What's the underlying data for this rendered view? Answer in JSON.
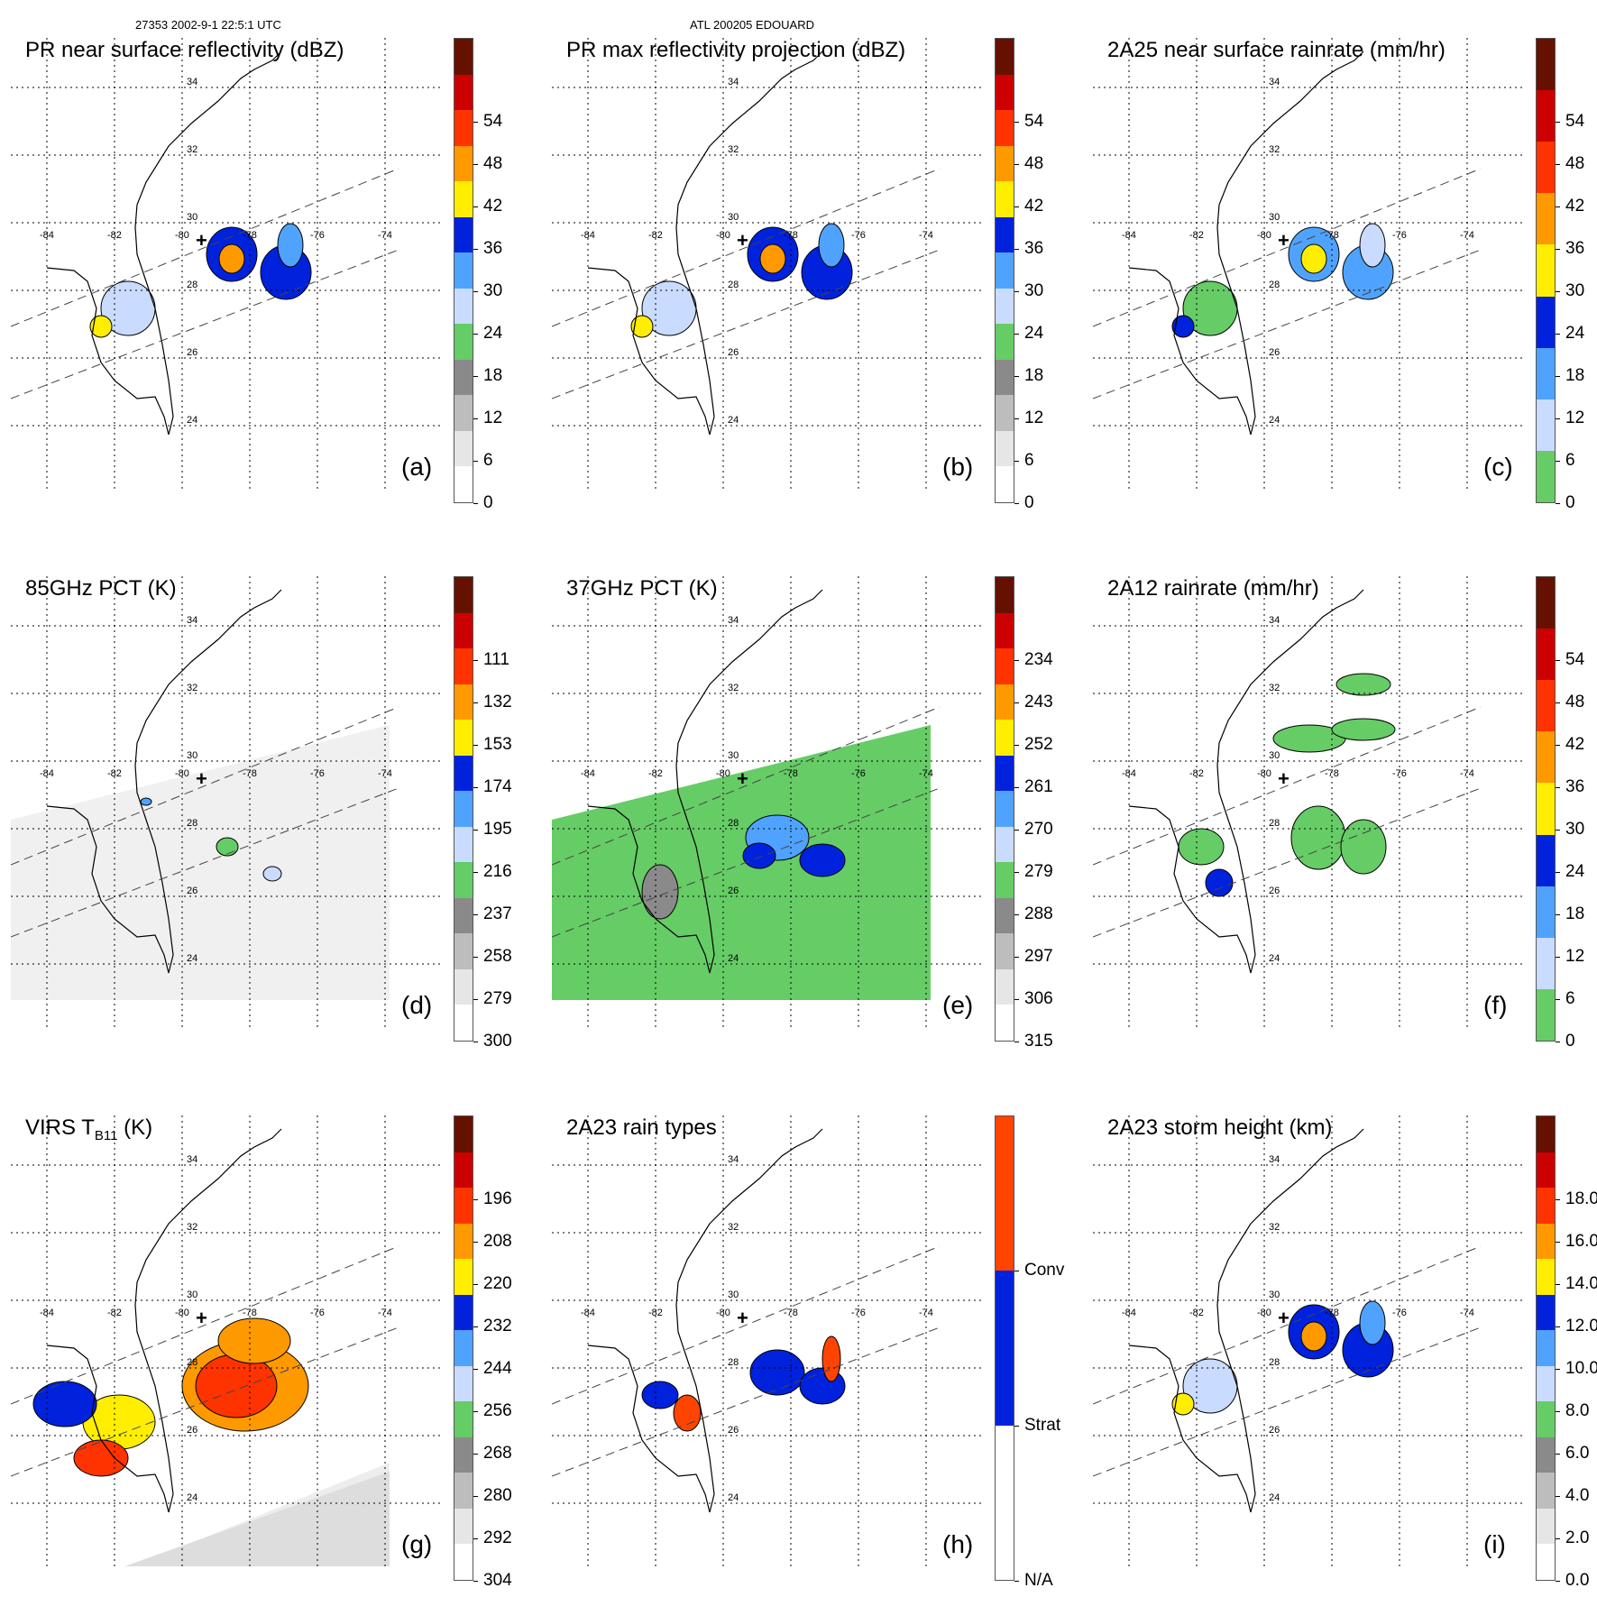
{
  "header": {
    "orbit_time": "27353 2002-9-1 22:5:1 UTC",
    "storm": "ATL 200205 EDOUARD"
  },
  "lon_labels": [
    "-84",
    "-82",
    "-80",
    "-78",
    "-76",
    "-74"
  ],
  "lat_labels": [
    "34",
    "32",
    "30",
    "28",
    "26",
    "24"
  ],
  "panels": [
    {
      "id": "a",
      "title": "PR near surface reflectivity (dBZ)",
      "letter": "(a)",
      "ticks": [
        "0",
        "6",
        "12",
        "18",
        "24",
        "30",
        "36",
        "42",
        "48",
        "54",
        ""
      ],
      "colors": [
        "#ffffff",
        "#e6e6e6",
        "#bdbdbd",
        "#8a8a8a",
        "#66cc66",
        "#c9dbff",
        "#4fa3ff",
        "#0022dd",
        "#ffee00",
        "#ff9900",
        "#ff3300",
        "#cc0000",
        "#661100"
      ]
    },
    {
      "id": "b",
      "title": "PR max reflectivity projection (dBZ)",
      "letter": "(b)",
      "ticks": [
        "0",
        "6",
        "12",
        "18",
        "24",
        "30",
        "36",
        "42",
        "48",
        "54",
        ""
      ],
      "colors": [
        "#ffffff",
        "#e6e6e6",
        "#bdbdbd",
        "#8a8a8a",
        "#66cc66",
        "#c9dbff",
        "#4fa3ff",
        "#0022dd",
        "#ffee00",
        "#ff9900",
        "#ff3300",
        "#cc0000",
        "#661100"
      ]
    },
    {
      "id": "c",
      "title": "2A25 near surface rainrate (mm/hr)",
      "letter": "(c)",
      "ticks": [
        "0",
        "6",
        "12",
        "18",
        "24",
        "30",
        "36",
        "42",
        "48",
        "54",
        ""
      ],
      "colors": [
        "#66cc66",
        "#c9dbff",
        "#4fa3ff",
        "#0022dd",
        "#ffee00",
        "#ff9900",
        "#ff3300",
        "#cc0000",
        "#661100"
      ]
    },
    {
      "id": "d",
      "title": "85GHz PCT (K)",
      "letter": "(d)",
      "ticks": [
        "300",
        "279",
        "258",
        "237",
        "216",
        "195",
        "174",
        "153",
        "132",
        "111",
        ""
      ],
      "colors": [
        "#ffffff",
        "#e6e6e6",
        "#bdbdbd",
        "#8a8a8a",
        "#66cc66",
        "#c9dbff",
        "#4fa3ff",
        "#0022dd",
        "#ffee00",
        "#ff9900",
        "#ff3300",
        "#cc0000",
        "#661100"
      ]
    },
    {
      "id": "e",
      "title": "37GHz PCT (K)",
      "letter": "(e)",
      "ticks": [
        "315",
        "306",
        "297",
        "288",
        "279",
        "270",
        "261",
        "252",
        "243",
        "234",
        ""
      ],
      "colors": [
        "#ffffff",
        "#e6e6e6",
        "#bdbdbd",
        "#8a8a8a",
        "#66cc66",
        "#c9dbff",
        "#4fa3ff",
        "#0022dd",
        "#ffee00",
        "#ff9900",
        "#ff3300",
        "#cc0000",
        "#661100"
      ]
    },
    {
      "id": "f",
      "title": "2A12 rainrate (mm/hr)",
      "letter": "(f)",
      "ticks": [
        "0",
        "6",
        "12",
        "18",
        "24",
        "30",
        "36",
        "42",
        "48",
        "54",
        ""
      ],
      "colors": [
        "#66cc66",
        "#c9dbff",
        "#4fa3ff",
        "#0022dd",
        "#ffee00",
        "#ff9900",
        "#ff3300",
        "#cc0000",
        "#661100"
      ]
    },
    {
      "id": "g",
      "title": "VIRS T",
      "title_sub": "B11",
      "title_tail": " (K)",
      "letter": "(g)",
      "ticks": [
        "304",
        "292",
        "280",
        "268",
        "256",
        "244",
        "232",
        "220",
        "208",
        "196",
        ""
      ],
      "colors": [
        "#ffffff",
        "#e6e6e6",
        "#bdbdbd",
        "#8a8a8a",
        "#66cc66",
        "#c9dbff",
        "#4fa3ff",
        "#0022dd",
        "#ffee00",
        "#ff9900",
        "#ff3300",
        "#cc0000",
        "#661100"
      ]
    },
    {
      "id": "h",
      "title": "2A23 rain types",
      "letter": "(h)",
      "ticks": [
        "N/A",
        "Strat",
        "Conv"
      ],
      "colors": [
        "#ffffff",
        "#0022dd",
        "#ff4400"
      ]
    },
    {
      "id": "i",
      "title": "2A23 storm height (km)",
      "letter": "(i)",
      "ticks": [
        "0.0",
        "2.0",
        "4.0",
        "6.0",
        "8.0",
        "10.0",
        "12.0",
        "14.0",
        "16.0",
        "18.0",
        ""
      ],
      "colors": [
        "#ffffff",
        "#e6e6e6",
        "#bdbdbd",
        "#8a8a8a",
        "#66cc66",
        "#c9dbff",
        "#4fa3ff",
        "#0022dd",
        "#ffee00",
        "#ff9900",
        "#ff3300",
        "#cc0000",
        "#661100"
      ]
    }
  ]
}
